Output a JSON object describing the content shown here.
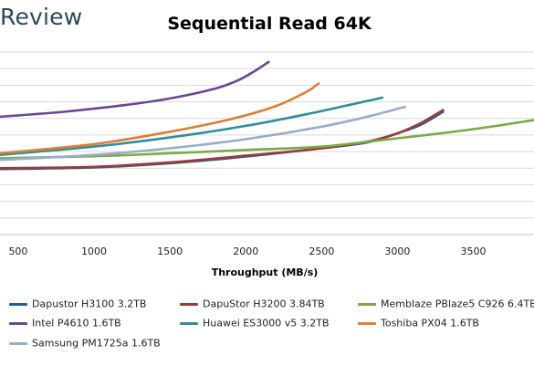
{
  "brand": {
    "text": "Review"
  },
  "chart_data": {
    "type": "line",
    "title": "Sequential Read 64K",
    "xlabel": "Throughput (MB/s)",
    "ylabel": "",
    "x_ticks": [
      500,
      1000,
      1500,
      2000,
      2500,
      3000,
      3500
    ],
    "xlim": [
      380,
      3900
    ],
    "ylim": [
      0,
      11
    ],
    "gridlines": 11,
    "grid": true,
    "legend_position": "bottom",
    "series": [
      {
        "name": "Dapustor H3100 3.2TB",
        "color": "#255e91",
        "points": [
          [
            380,
            3.95
          ],
          [
            1000,
            4.05
          ],
          [
            1500,
            4.3
          ],
          [
            2000,
            4.7
          ],
          [
            2500,
            5.2
          ],
          [
            2800,
            5.55
          ],
          [
            3000,
            6.1
          ],
          [
            3150,
            6.6
          ],
          [
            3300,
            7.4
          ]
        ]
      },
      {
        "name": "DapuStor H3200 3.84TB",
        "color": "#9e3a38",
        "points": [
          [
            380,
            4.0
          ],
          [
            1000,
            4.08
          ],
          [
            1500,
            4.35
          ],
          [
            2000,
            4.75
          ],
          [
            2500,
            5.2
          ],
          [
            2800,
            5.6
          ],
          [
            3000,
            6.1
          ],
          [
            3150,
            6.7
          ],
          [
            3300,
            7.5
          ]
        ]
      },
      {
        "name": "Memblaze PBlaze5 C926 6.4TB",
        "color": "#7aaa46",
        "points": [
          [
            380,
            4.6
          ],
          [
            1000,
            4.72
          ],
          [
            1500,
            4.9
          ],
          [
            2000,
            5.1
          ],
          [
            2500,
            5.3
          ],
          [
            3000,
            5.8
          ],
          [
            3500,
            6.35
          ],
          [
            3900,
            6.9
          ]
        ]
      },
      {
        "name": "Intel P4610 1.6TB",
        "color": "#6b4596",
        "points": [
          [
            380,
            7.1
          ],
          [
            800,
            7.4
          ],
          [
            1200,
            7.8
          ],
          [
            1500,
            8.2
          ],
          [
            1800,
            8.8
          ],
          [
            1950,
            9.3
          ],
          [
            2050,
            9.8
          ],
          [
            2150,
            10.4
          ]
        ]
      },
      {
        "name": "Huawei ES3000 v5 3.2TB",
        "color": "#2e8ea0",
        "points": [
          [
            380,
            4.8
          ],
          [
            1000,
            5.3
          ],
          [
            1500,
            5.85
          ],
          [
            2000,
            6.55
          ],
          [
            2400,
            7.25
          ],
          [
            2700,
            7.85
          ],
          [
            2900,
            8.25
          ]
        ]
      },
      {
        "name": "Toshiba PX04 1.6TB",
        "color": "#e07e34",
        "points": [
          [
            380,
            4.9
          ],
          [
            1000,
            5.45
          ],
          [
            1500,
            6.2
          ],
          [
            1900,
            6.95
          ],
          [
            2200,
            7.75
          ],
          [
            2400,
            8.6
          ],
          [
            2480,
            9.1
          ]
        ]
      },
      {
        "name": "Samsung PM1725a 1.6TB",
        "color": "#9aaccc",
        "points": [
          [
            380,
            4.5
          ],
          [
            1000,
            4.8
          ],
          [
            1500,
            5.2
          ],
          [
            2000,
            5.75
          ],
          [
            2500,
            6.5
          ],
          [
            2800,
            7.1
          ],
          [
            3050,
            7.7
          ]
        ]
      }
    ]
  }
}
